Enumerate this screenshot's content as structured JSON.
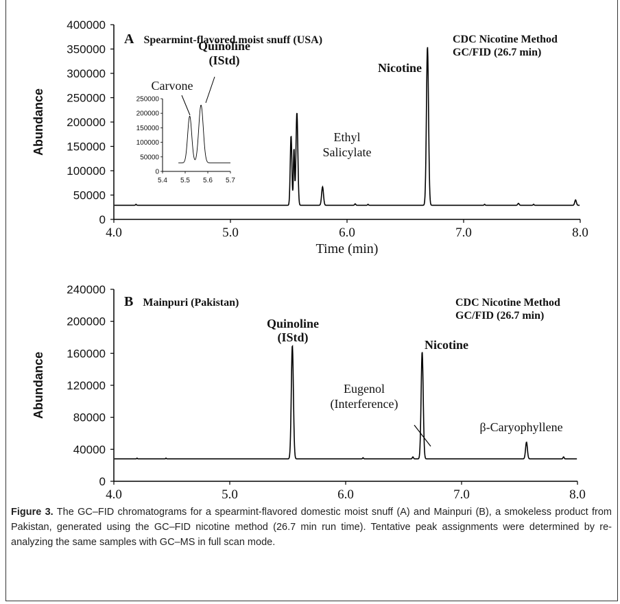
{
  "caption": {
    "label": "Figure 3.",
    "text": " The GC–FID chromatograms for a spearmint-flavored domestic moist snuff (A) and Mainpuri (B), a smokeless product from Pakistan, generated using the GC–FID nicotine method (26.7 min run time). Tentative peak assignments were determined by re-analyzing the same samples with GC–MS in full scan mode."
  },
  "chart_data": [
    {
      "type": "line",
      "panel_letter": "A",
      "title": "Spearmint-flavored moist snuff (USA)",
      "method": [
        "CDC Nicotine Method",
        "GC/FID (26.7 min)"
      ],
      "xlabel": "Time (min)",
      "ylabel": "Abundance",
      "xlim": [
        4.0,
        8.0
      ],
      "ylim": [
        0,
        400000
      ],
      "xticks": [
        "4.0",
        "5.0",
        "6.0",
        "7.0",
        "8.0"
      ],
      "yticks": [
        "0",
        "50000",
        "100000",
        "150000",
        "200000",
        "250000",
        "300000",
        "350000",
        "400000"
      ],
      "baseline": 29000,
      "peaks": [
        {
          "x": 4.19,
          "height": 31000,
          "width": 0.004
        },
        {
          "x": 5.52,
          "height": 172000,
          "width": 0.007
        },
        {
          "x": 5.545,
          "height": 145000,
          "width": 0.005
        },
        {
          "x": 5.57,
          "height": 220000,
          "width": 0.008
        },
        {
          "x": 5.79,
          "height": 67000,
          "width": 0.008
        },
        {
          "x": 6.07,
          "height": 32000,
          "width": 0.005
        },
        {
          "x": 6.18,
          "height": 31000,
          "width": 0.004
        },
        {
          "x": 6.69,
          "height": 355000,
          "width": 0.009
        },
        {
          "x": 7.18,
          "height": 31000,
          "width": 0.004
        },
        {
          "x": 7.47,
          "height": 33000,
          "width": 0.006
        },
        {
          "x": 7.6,
          "height": 31000,
          "width": 0.004
        },
        {
          "x": 7.96,
          "height": 40000,
          "width": 0.007
        }
      ],
      "annotations": [
        {
          "text": [
            "Quinoline",
            "(IStd)"
          ],
          "bold": true
        },
        {
          "text": [
            "Carvone"
          ],
          "bold": false
        },
        {
          "text": [
            "Ethyl",
            "Salicylate"
          ],
          "bold": false
        },
        {
          "text": [
            "Nicotine"
          ],
          "bold": true
        }
      ],
      "inset": {
        "xlim": [
          5.4,
          5.7
        ],
        "ylim": [
          0,
          250000
        ],
        "xticks": [
          "5.4",
          "5.5",
          "5.6",
          "5.7"
        ],
        "yticks": [
          "0",
          "50000",
          "100000",
          "150000",
          "200000",
          "250000"
        ],
        "baseline": 29000,
        "peaks": [
          {
            "x": 5.52,
            "height": 190000,
            "width": 0.009
          },
          {
            "x": 5.57,
            "height": 228000,
            "width": 0.01
          }
        ]
      }
    },
    {
      "type": "line",
      "panel_letter": "B",
      "title": "Mainpuri (Pakistan)",
      "method": [
        "CDC Nicotine Method",
        "GC/FID (26.7 min)"
      ],
      "xlabel": "Time (min)",
      "ylabel": "Abundance",
      "xlim": [
        4.0,
        8.0
      ],
      "ylim": [
        0,
        240000
      ],
      "xticks": [
        "4.0",
        "5.0",
        "6.0",
        "7.0",
        "8.0"
      ],
      "yticks": [
        "0",
        "40000",
        "80000",
        "120000",
        "160000",
        "200000",
        "240000"
      ],
      "baseline": 28000,
      "peaks": [
        {
          "x": 4.2,
          "height": 29000,
          "width": 0.003
        },
        {
          "x": 4.45,
          "height": 29000,
          "width": 0.003
        },
        {
          "x": 5.54,
          "height": 170000,
          "width": 0.009
        },
        {
          "x": 6.15,
          "height": 29500,
          "width": 0.004
        },
        {
          "x": 6.58,
          "height": 30500,
          "width": 0.005
        },
        {
          "x": 6.66,
          "height": 162000,
          "width": 0.009
        },
        {
          "x": 7.56,
          "height": 49000,
          "width": 0.008
        },
        {
          "x": 7.88,
          "height": 30500,
          "width": 0.005
        }
      ],
      "annotations": [
        {
          "text": [
            "Quinoline",
            "(IStd)"
          ],
          "bold": true
        },
        {
          "text": [
            "Nicotine"
          ],
          "bold": true
        },
        {
          "text": [
            "Eugenol",
            "(Interference)"
          ],
          "bold": false
        },
        {
          "text": [
            "β-Caryophyllene"
          ],
          "bold": false
        }
      ]
    }
  ]
}
